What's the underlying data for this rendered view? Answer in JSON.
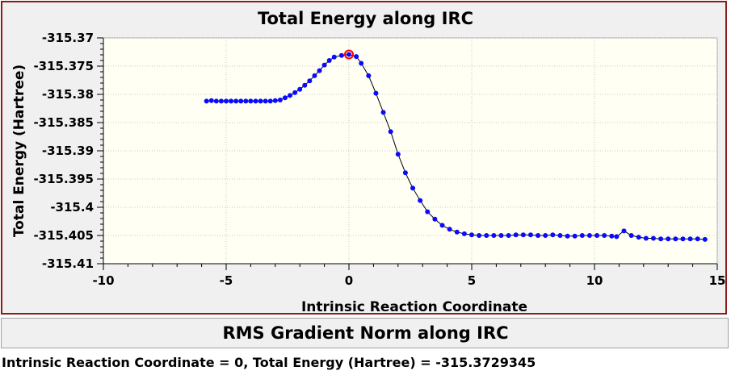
{
  "chart_data": {
    "type": "scatter",
    "title": "Total Energy along IRC",
    "xlabel": "Intrinsic Reaction Coordinate",
    "ylabel": "Total Energy (Hartree)",
    "xlim": [
      -10,
      15
    ],
    "ylim": [
      -315.41,
      -315.37
    ],
    "xticks": [
      -10,
      -5,
      0,
      5,
      10,
      15
    ],
    "xtick_labels": [
      "-10",
      "-5",
      "0",
      "5",
      "10",
      "15"
    ],
    "yticks": [
      -315.37,
      -315.375,
      -315.38,
      -315.385,
      -315.39,
      -315.395,
      -315.4,
      -315.405,
      -315.41
    ],
    "ytick_labels": [
      "-315.37",
      "-315.375",
      "-315.38",
      "-315.385",
      "-315.39",
      "-315.395",
      "-315.4",
      "-315.405",
      "-315.41"
    ],
    "grid": true,
    "series": [
      {
        "x": [
          -5.8,
          -5.6,
          -5.4,
          -5.2,
          -5.0,
          -4.8,
          -4.6,
          -4.4,
          -4.2,
          -4.0,
          -3.8,
          -3.6,
          -3.4,
          -3.2,
          -3.0,
          -2.8,
          -2.6,
          -2.4,
          -2.2,
          -2.0,
          -1.8,
          -1.6,
          -1.4,
          -1.2,
          -1.0,
          -0.8,
          -0.6,
          -0.3,
          0.0,
          0.3,
          0.5,
          0.8,
          1.1,
          1.4,
          1.7,
          2.0,
          2.3,
          2.6,
          2.9,
          3.2,
          3.5,
          3.8,
          4.1,
          4.4,
          4.7,
          5.0,
          5.3,
          5.6,
          5.9,
          6.2,
          6.5,
          6.8,
          7.1,
          7.4,
          7.7,
          8.0,
          8.3,
          8.6,
          8.9,
          9.2,
          9.5,
          9.8,
          10.1,
          10.4,
          10.7,
          10.9,
          11.2,
          11.5,
          11.8,
          12.1,
          12.4,
          12.7,
          13.0,
          13.3,
          13.6,
          13.9,
          14.2,
          14.5
        ],
        "y": [
          -315.3812,
          -315.3811,
          -315.3812,
          -315.3812,
          -315.3812,
          -315.3812,
          -315.3812,
          -315.3812,
          -315.3812,
          -315.3812,
          -315.3812,
          -315.3812,
          -315.3812,
          -315.3812,
          -315.3811,
          -315.381,
          -315.3806,
          -315.3802,
          -315.3797,
          -315.3791,
          -315.3784,
          -315.3776,
          -315.3767,
          -315.3758,
          -315.3748,
          -315.374,
          -315.3734,
          -315.3731,
          -315.37293,
          -315.3733,
          -315.3745,
          -315.3767,
          -315.3798,
          -315.3832,
          -315.3866,
          -315.3906,
          -315.3939,
          -315.3966,
          -315.3988,
          -315.4008,
          -315.4021,
          -315.4032,
          -315.4039,
          -315.4044,
          -315.4047,
          -315.4049,
          -315.405,
          -315.405,
          -315.405,
          -315.405,
          -315.405,
          -315.4049,
          -315.4049,
          -315.4049,
          -315.405,
          -315.405,
          -315.4049,
          -315.405,
          -315.4051,
          -315.4051,
          -315.405,
          -315.405,
          -315.405,
          -315.405,
          -315.4051,
          -315.4052,
          -315.4042,
          -315.405,
          -315.4053,
          -315.4055,
          -315.4055,
          -315.4056,
          -315.4056,
          -315.4056,
          -315.4056,
          -315.4056,
          -315.4056,
          -315.4057
        ]
      }
    ],
    "highlight": {
      "x": 0,
      "y": -315.3729345
    }
  },
  "rms_panel": {
    "title": "RMS Gradient Norm along IRC"
  },
  "status": {
    "text": "Intrinsic Reaction Coordinate = 0, Total Energy (Hartree) = -315.3729345"
  },
  "colors": {
    "point": "#0a0aff",
    "highlight": "#ff0000",
    "line": "#000000",
    "frame": "#8b1a1a",
    "plot_bg": "#fffff4",
    "grid": "#c8c8c8"
  }
}
